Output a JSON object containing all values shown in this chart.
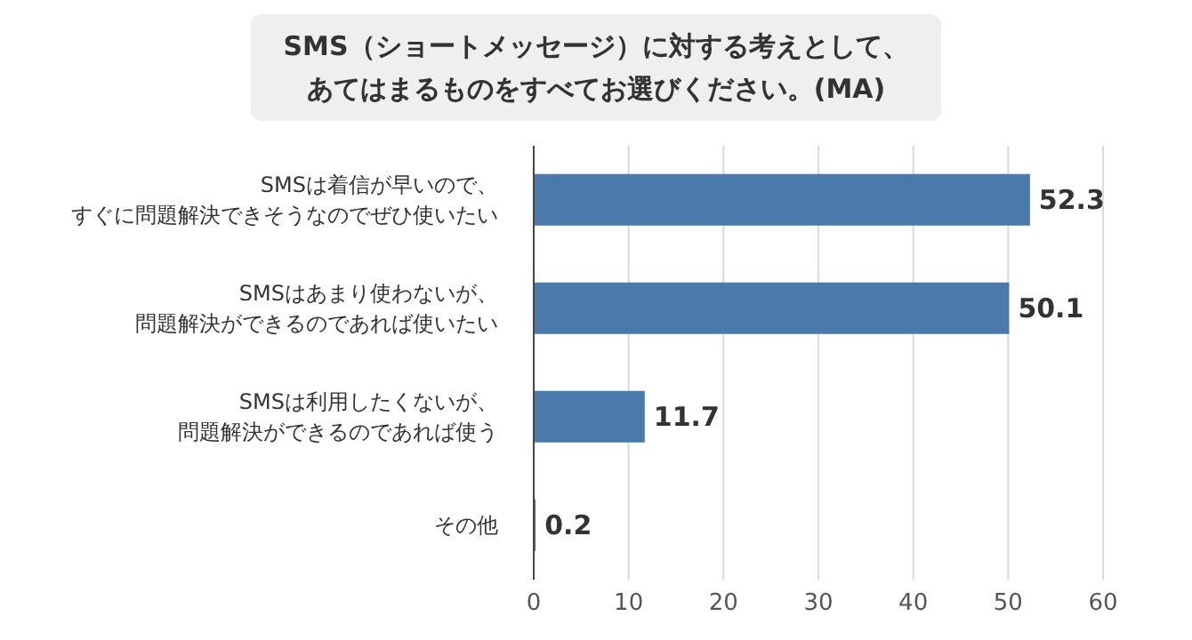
{
  "chart_data": {
    "type": "bar",
    "orientation": "horizontal",
    "title": "SMS（ショートメッセージ）に対する考えとして、あてはまるものをすべてお選びください。(MA)",
    "categories": [
      "SMSは着信が早いので、すぐに問題解決できそうなのでぜひ使いたい",
      "SMSはあまり使わないが、問題解決ができるのであれば使いたい",
      "SMSは利用したくないが、問題解決ができるのであれば使う",
      "その他"
    ],
    "values": [
      52.3,
      50.1,
      11.7,
      0.2
    ],
    "color": "#4a7aab",
    "xlim": [
      0,
      60
    ],
    "xticks": [
      0,
      10,
      20,
      30,
      40,
      50,
      60
    ],
    "grid": "x",
    "data_labels": true
  }
}
